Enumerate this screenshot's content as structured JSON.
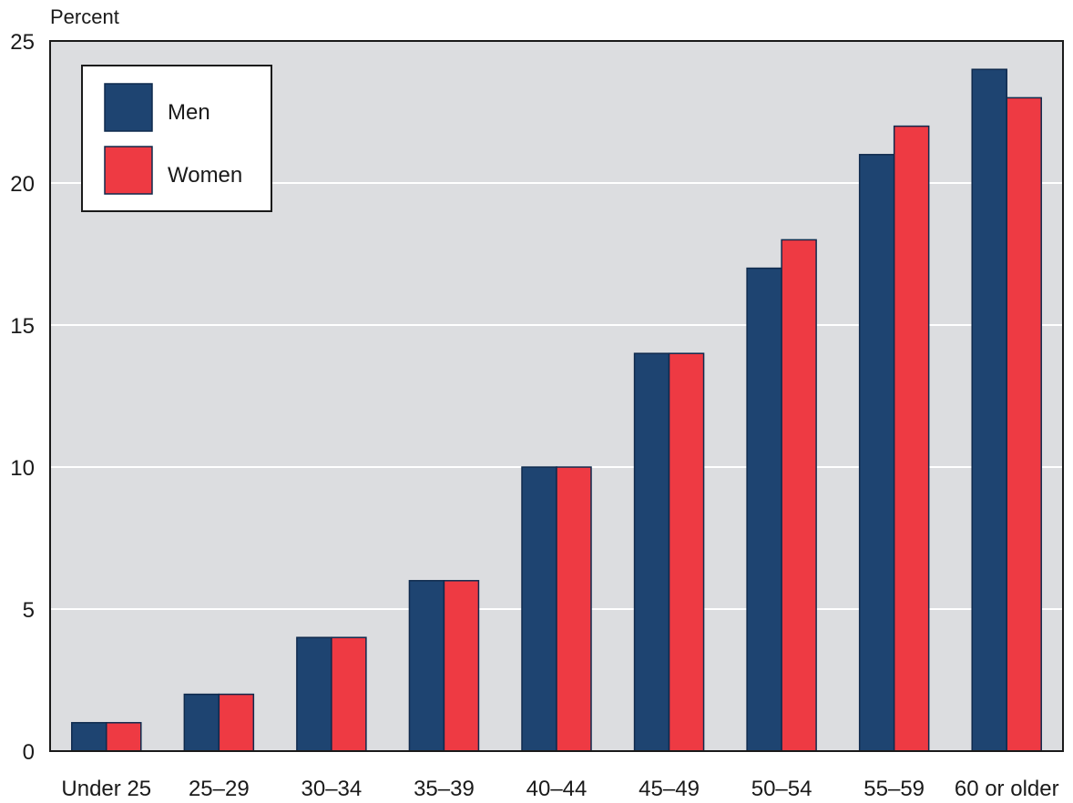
{
  "chart_data": {
    "type": "bar",
    "ylabel": "Percent",
    "ylim": [
      0,
      25
    ],
    "yticks": [
      0,
      5,
      10,
      15,
      20,
      25
    ],
    "grid": true,
    "legend_position": "top-left",
    "categories": [
      "Under 25",
      "25–29",
      "30–34",
      "35–39",
      "40–44",
      "45–49",
      "50–54",
      "55–59",
      "60 or older"
    ],
    "series": [
      {
        "name": "Men",
        "color": "#1e4471",
        "values": [
          1,
          2,
          4,
          6,
          10,
          14,
          17,
          21,
          24
        ]
      },
      {
        "name": "Women",
        "color": "#ee3a43",
        "values": [
          1,
          2,
          4,
          6,
          10,
          14,
          18,
          22,
          23
        ]
      }
    ]
  }
}
